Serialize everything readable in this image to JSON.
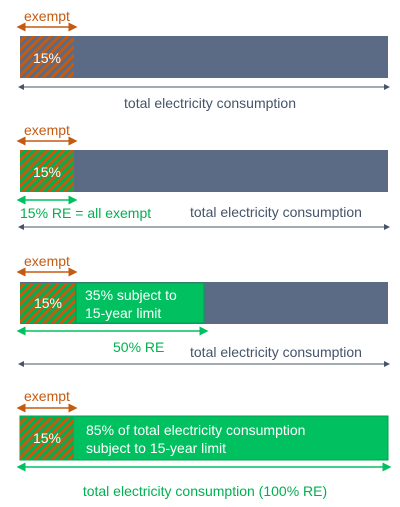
{
  "colors": {
    "bar": "#5b6b85",
    "exempt_orange": "#c55a11",
    "re_green": "#00c060",
    "arrow_gray": "#44546a"
  },
  "rows": [
    {
      "exempt_label": "exempt",
      "exempt_pct": "15%",
      "total_label": "total electricity consumption"
    },
    {
      "exempt_label": "exempt",
      "exempt_pct": "15%",
      "re_label": "15% RE = all exempt",
      "total_label": "total electricity consumption"
    },
    {
      "exempt_label": "exempt",
      "exempt_pct": "15%",
      "subject_label": [
        "35% subject to",
        "15-year limit"
      ],
      "re_label": "50% RE",
      "total_label": "total electricity consumption"
    },
    {
      "exempt_label": "exempt",
      "exempt_pct": "15%",
      "subject_label": [
        "85% of total electricity consumption",
        "subject to 15-year limit"
      ],
      "total_label": "total electricity consumption (100% RE)"
    }
  ]
}
